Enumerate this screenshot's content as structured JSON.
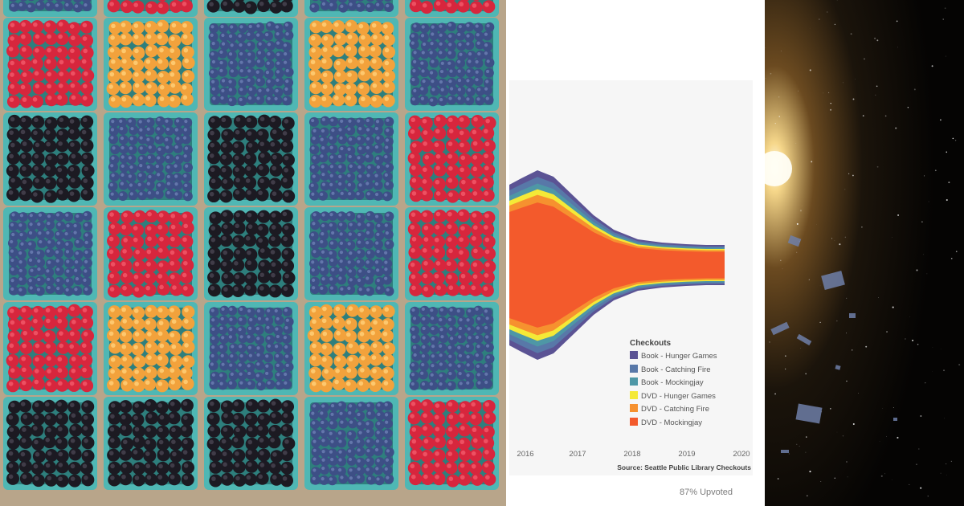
{
  "chart_data": {
    "type": "area",
    "title": "",
    "xlabel": "",
    "ylabel": "",
    "x_ticks": [
      "2016",
      "2017",
      "2018",
      "2019",
      "2020"
    ],
    "legend": {
      "title": "Checkouts",
      "placement": "bottom-right",
      "entries": [
        {
          "name": "Book - Hunger Games",
          "color": "#5b5394"
        },
        {
          "name": "Book - Catching Fire",
          "color": "#5878a8"
        },
        {
          "name": "Book - Mockingjay",
          "color": "#4e97a6"
        },
        {
          "name": "DVD - Hunger Games",
          "color": "#f4e937"
        },
        {
          "name": "DVD - Catching Fire",
          "color": "#f6912f"
        },
        {
          "name": "DVD - Mockingjay",
          "color": "#f35a2c"
        }
      ]
    },
    "source": "Source: Seattle Public Library Checkouts"
  },
  "footer": {
    "upvote_text": "87% Upvoted"
  },
  "colors": {
    "basket": "#4fb7b4",
    "card_background": "#f6f6f6"
  }
}
